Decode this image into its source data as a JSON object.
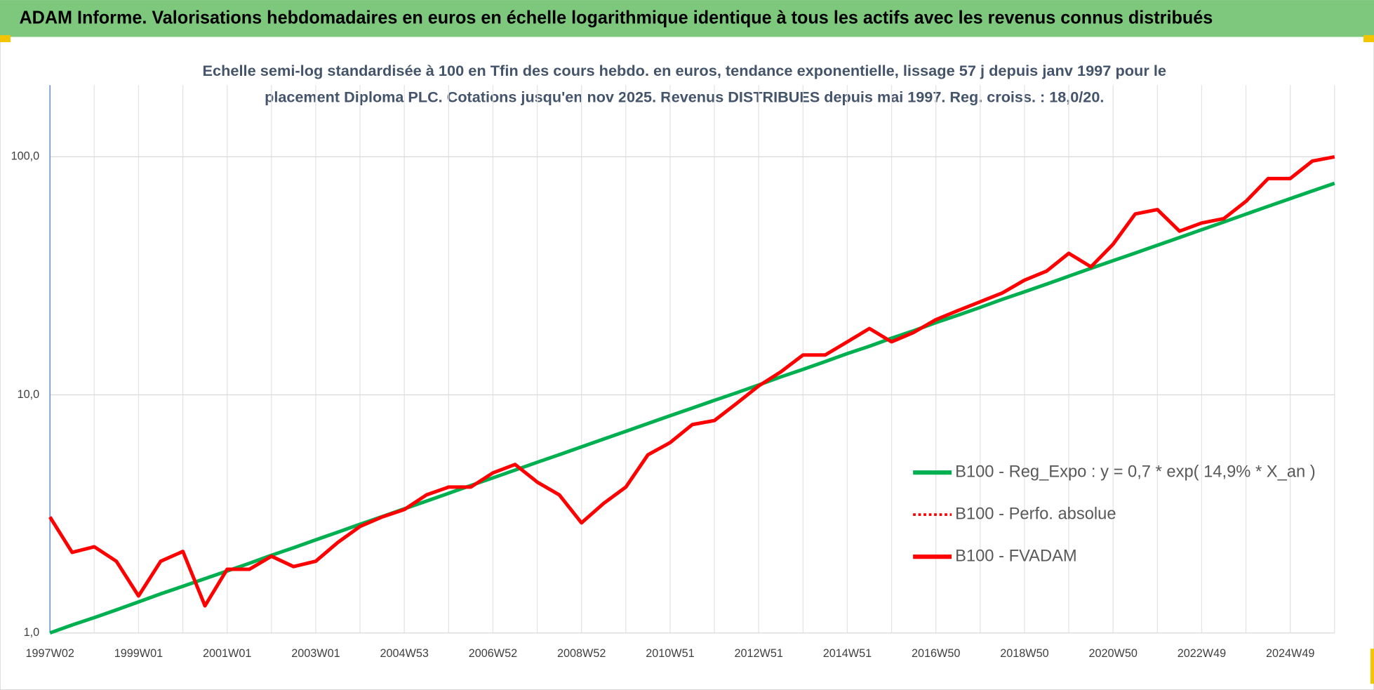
{
  "header": {
    "title": "ADAM Informe. Valorisations hebdomadaires en euros en échelle logarithmique identique à tous les actifs avec les revenus connus distribués"
  },
  "chart_data": {
    "type": "line",
    "title": [
      "Echelle semi-log standardisée à 100 en Tfin des cours hebdo. en euros, tendance exponentielle, lissage 57 j depuis janv 1997 pour le",
      "placement Diploma PLC. Cotations jusqu'en nov 2025.  Revenus DISTRIBUES depuis mai 1997. Reg. croiss. : 18,0/20."
    ],
    "categories": [
      "1997W02",
      null,
      null,
      null,
      "1999W01",
      null,
      null,
      null,
      "2001W01",
      null,
      null,
      null,
      "2003W01",
      null,
      null,
      null,
      "2004W53",
      null,
      null,
      null,
      "2006W52",
      null,
      null,
      null,
      "2008W52",
      null,
      null,
      null,
      "2010W51",
      null,
      null,
      null,
      "2012W51",
      null,
      null,
      null,
      "2014W51",
      null,
      null,
      null,
      "2016W50",
      null,
      null,
      null,
      "2018W50",
      null,
      null,
      null,
      "2020W50",
      null,
      null,
      null,
      "2022W49",
      null,
      null,
      null,
      "2024W49",
      null,
      null
    ],
    "series": [
      {
        "name": "B100 - Reg_Expo : y = 0,7 * exp( 14,9% * X_an )",
        "color": "#00b050",
        "style": "solid",
        "values": [
          1.0,
          1.08,
          1.16,
          1.25,
          1.35,
          1.46,
          1.57,
          1.69,
          1.82,
          1.96,
          2.12,
          2.28,
          2.46,
          2.65,
          2.86,
          3.08,
          3.32,
          3.58,
          3.86,
          4.16,
          4.48,
          4.83,
          5.21,
          5.61,
          6.05,
          6.52,
          7.03,
          7.58,
          8.17,
          8.8,
          9.49,
          10.2,
          11.0,
          11.9,
          12.8,
          13.8,
          14.9,
          16.0,
          17.3,
          18.6,
          20.1,
          21.6,
          23.3,
          25.2,
          27.1,
          29.2,
          31.5,
          34.0,
          36.6,
          39.4,
          42.5,
          45.8,
          49.4,
          53.2,
          57.4,
          61.9,
          66.7,
          71.9,
          77.4
        ]
      },
      {
        "name": "B100 - Perfo. absolue",
        "color": "#ff0000",
        "style": "dotted",
        "values": [
          3.07,
          2.18,
          2.3,
          2.0,
          1.43,
          2.0,
          2.2,
          1.3,
          1.85,
          1.85,
          2.1,
          1.9,
          2.0,
          2.4,
          2.8,
          3.07,
          3.3,
          3.8,
          4.1,
          4.1,
          4.7,
          5.1,
          4.3,
          3.8,
          2.9,
          3.5,
          4.1,
          5.6,
          6.3,
          7.5,
          7.8,
          9.2,
          10.9,
          12.5,
          14.7,
          14.7,
          16.7,
          19.0,
          16.7,
          18.3,
          20.7,
          22.6,
          24.6,
          26.8,
          30.3,
          33.1,
          39.3,
          34.5,
          42.9,
          57.5,
          60,
          48.7,
          52.7,
          55,
          65,
          81,
          81,
          96,
          100
        ]
      },
      {
        "name": "B100 - FVADAM",
        "color": "#ff0000",
        "style": "solid",
        "values": [
          3.07,
          2.18,
          2.3,
          2.0,
          1.43,
          2.0,
          2.2,
          1.3,
          1.85,
          1.85,
          2.1,
          1.9,
          2.0,
          2.4,
          2.8,
          3.07,
          3.3,
          3.8,
          4.1,
          4.1,
          4.7,
          5.1,
          4.3,
          3.8,
          2.9,
          3.5,
          4.1,
          5.6,
          6.3,
          7.5,
          7.8,
          9.2,
          10.9,
          12.5,
          14.7,
          14.7,
          16.7,
          19.0,
          16.7,
          18.3,
          20.7,
          22.6,
          24.6,
          26.8,
          30.3,
          33.1,
          39.3,
          34.5,
          42.9,
          57.5,
          60,
          48.7,
          52.7,
          55,
          65,
          81,
          81,
          96,
          100
        ]
      }
    ],
    "ylim": [
      1,
      200
    ],
    "yticks": [
      {
        "value": 1,
        "label": "1,0"
      },
      {
        "value": 10,
        "label": "10,0"
      },
      {
        "value": 100,
        "label": "100,0"
      }
    ],
    "log_scale": true,
    "grid": true,
    "legend": "right"
  }
}
